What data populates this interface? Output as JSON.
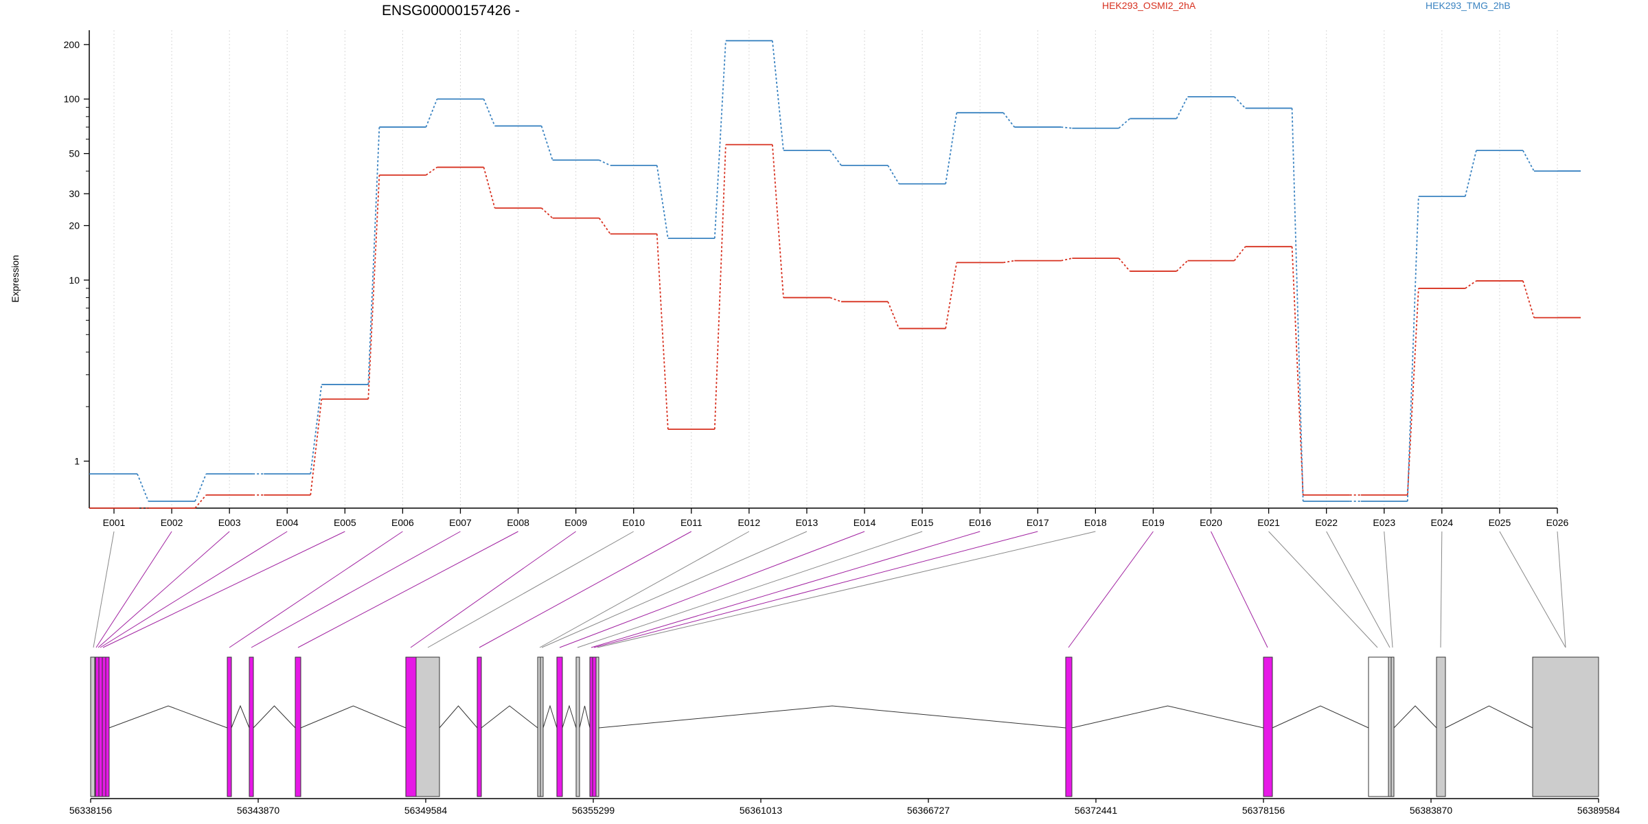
{
  "chart_data": {
    "type": "line",
    "title": "ENSG00000157426 -",
    "xlabel": "",
    "ylabel": "Expression",
    "y_scale": "log",
    "ylim": [
      0.55,
      240
    ],
    "yticks": [
      1,
      10,
      20,
      30,
      50,
      100,
      200
    ],
    "yticks_minor": [
      2,
      3,
      4,
      5,
      6,
      7,
      8,
      9,
      40,
      60,
      70,
      80,
      90
    ],
    "grid": "vertical dotted at exon centers",
    "legend": "top",
    "categories": [
      "E001",
      "E002",
      "E003",
      "E004",
      "E005",
      "E006",
      "E007",
      "E008",
      "E009",
      "E010",
      "E011",
      "E012",
      "E013",
      "E014",
      "E015",
      "E016",
      "E017",
      "E018",
      "E019",
      "E020",
      "E021",
      "E022",
      "E023",
      "E024",
      "E025",
      "E026"
    ],
    "series": [
      {
        "name": "HEK293_OSMI2_2hA",
        "color": "#d7301f",
        "values": [
          0.55,
          0.55,
          0.65,
          0.65,
          2.2,
          38,
          42,
          25,
          22,
          18,
          1.5,
          56,
          8.0,
          7.6,
          5.4,
          12.5,
          12.8,
          13.2,
          11.2,
          12.8,
          15.3,
          0.65,
          0.65,
          9.0,
          9.9,
          6.2
        ]
      },
      {
        "name": "HEK293_TMG_2hB",
        "color": "#3a83c1",
        "values": [
          0.85,
          0.6,
          0.85,
          0.85,
          2.65,
          70,
          100,
          71,
          46,
          43,
          17,
          210,
          52,
          43,
          34,
          84,
          70,
          69,
          78,
          103,
          89,
          0.6,
          0.6,
          29,
          52,
          40
        ]
      }
    ]
  },
  "gene_model": {
    "coordinate_labels": [
      "56338156",
      "56343870",
      "56349584",
      "56355299",
      "56361013",
      "56366727",
      "56372441",
      "56378156",
      "56383870",
      "56389584"
    ],
    "exon_highlight_color": "#e619e6",
    "exon_plain_color": "#cccccc",
    "exon_link_significant_color": "#a020a0",
    "exon_link_color": "#888888"
  }
}
